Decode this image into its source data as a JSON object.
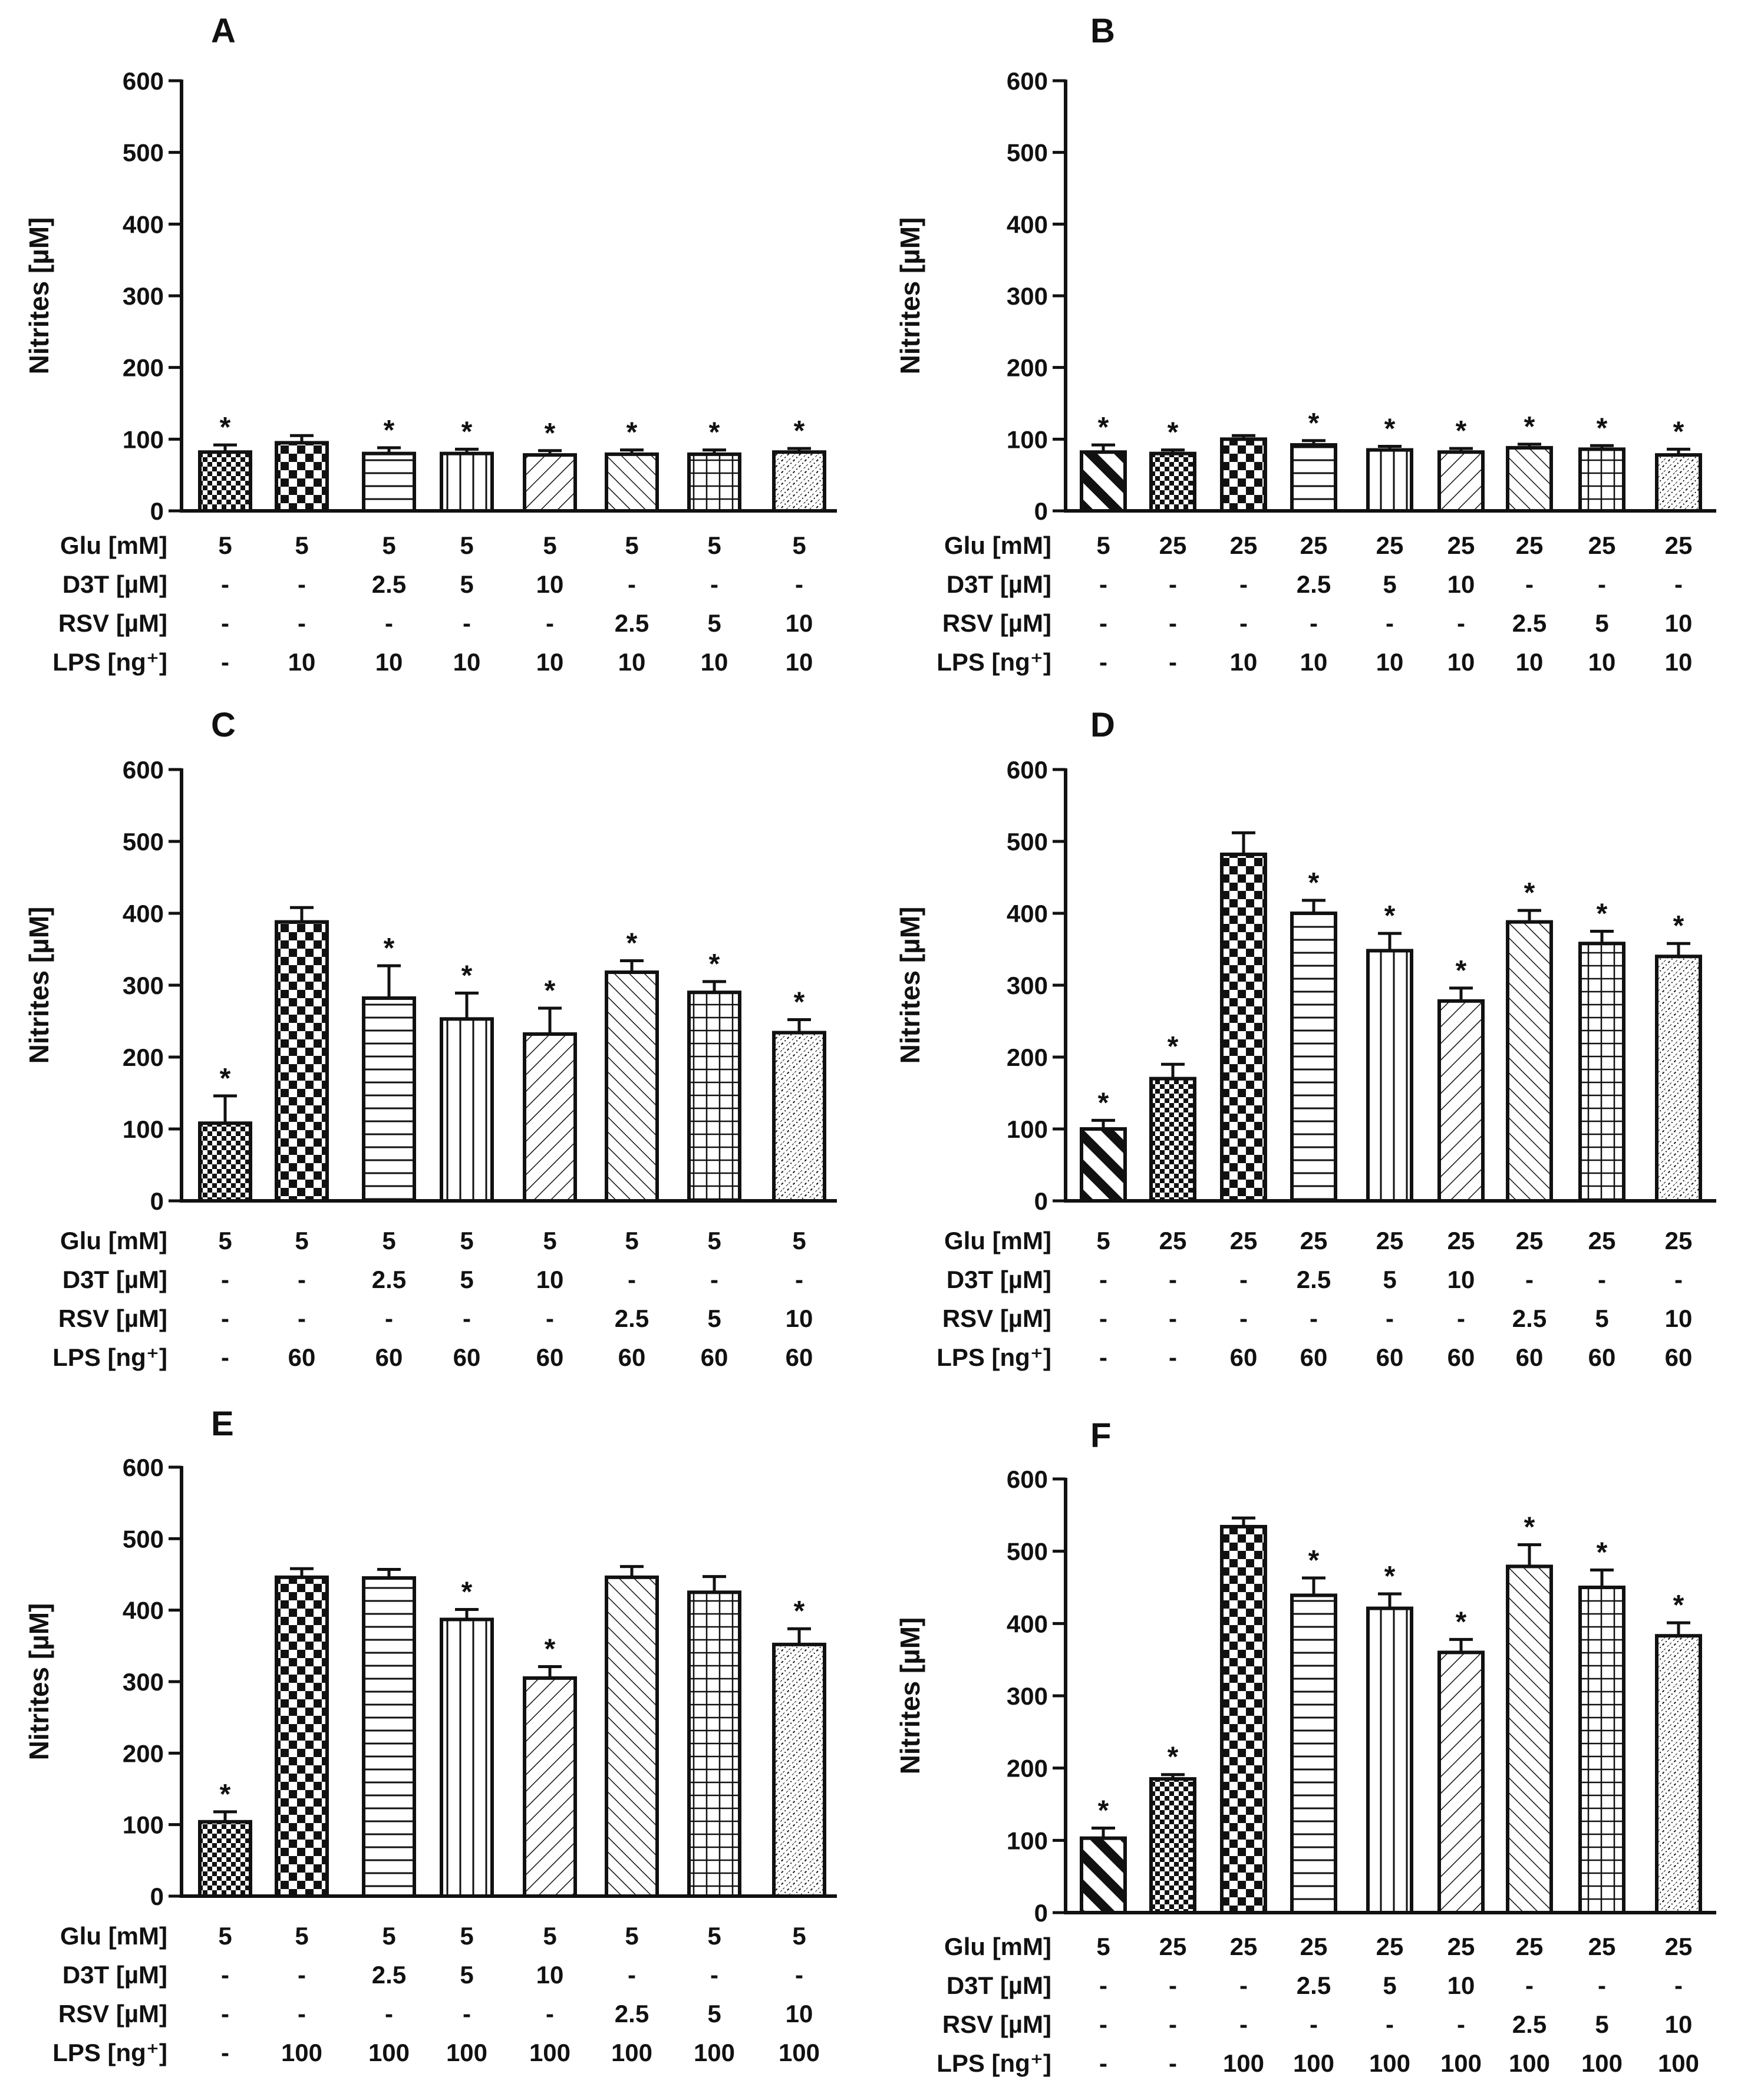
{
  "figure": {
    "y_axis_title": "Nitrites [µM]",
    "row_labels": [
      "Glu [mM]",
      "D3T [µM]",
      "RSV [µM]",
      "LPS [ng⁺]"
    ],
    "patterns": [
      "dense-check",
      "check",
      "hlines",
      "vlines",
      "diag-right",
      "diag-left",
      "grid",
      "dots"
    ],
    "colors": {
      "ink": "#111111",
      "fill": "#ffffff"
    }
  },
  "chart_data": [
    {
      "panel": "A",
      "type": "bar",
      "ylim": [
        0,
        600
      ],
      "yticks": [
        0,
        100,
        200,
        300,
        400,
        500,
        600
      ],
      "ylabel": "Nitrites [µM]",
      "values": [
        82,
        95,
        80,
        80,
        78,
        79,
        79,
        82
      ],
      "errors": [
        10,
        10,
        8,
        6,
        6,
        6,
        6,
        5
      ],
      "stars": [
        true,
        false,
        true,
        true,
        true,
        true,
        true,
        true
      ],
      "patterns": [
        "dense-check",
        "check",
        "hlines",
        "vlines",
        "diag-right",
        "diag-left",
        "grid",
        "dots"
      ],
      "table": {
        "glu": [
          "5",
          "5",
          "5",
          "5",
          "5",
          "5",
          "5",
          "5"
        ],
        "d3t": [
          "-",
          "-",
          "2.5",
          "5",
          "10",
          "-",
          "-",
          "-"
        ],
        "rsv": [
          "-",
          "-",
          "-",
          "-",
          "-",
          "2.5",
          "5",
          "10"
        ],
        "lps": [
          "-",
          "10",
          "10",
          "10",
          "10",
          "10",
          "10",
          "10"
        ]
      }
    },
    {
      "panel": "B",
      "type": "bar",
      "ylim": [
        0,
        600
      ],
      "yticks": [
        0,
        100,
        200,
        300,
        400,
        500,
        600
      ],
      "ylabel": "Nitrites [µM]",
      "values": [
        82,
        80,
        100,
        92,
        85,
        82,
        88,
        86,
        78
      ],
      "errors": [
        10,
        5,
        5,
        6,
        5,
        5,
        5,
        5,
        8
      ],
      "stars": [
        true,
        true,
        false,
        true,
        true,
        true,
        true,
        true,
        true
      ],
      "patterns": [
        "thick-diag",
        "dense-check",
        "check",
        "hlines",
        "vlines",
        "diag-right",
        "diag-left",
        "grid",
        "dots"
      ],
      "table": {
        "glu": [
          "5",
          "25",
          "25",
          "25",
          "25",
          "25",
          "25",
          "25",
          "25"
        ],
        "d3t": [
          "-",
          "-",
          "-",
          "2.5",
          "5",
          "10",
          "-",
          "-",
          "-"
        ],
        "rsv": [
          "-",
          "-",
          "-",
          "-",
          "-",
          "-",
          "2.5",
          "5",
          "10"
        ],
        "lps": [
          "-",
          "-",
          "10",
          "10",
          "10",
          "10",
          "10",
          "10",
          "10"
        ]
      }
    },
    {
      "panel": "C",
      "type": "bar",
      "ylim": [
        0,
        600
      ],
      "yticks": [
        0,
        100,
        200,
        300,
        400,
        500,
        600
      ],
      "ylabel": "Nitrites [µM]",
      "values": [
        108,
        388,
        282,
        253,
        232,
        318,
        290,
        234
      ],
      "errors": [
        38,
        20,
        45,
        36,
        36,
        16,
        15,
        18
      ],
      "stars": [
        true,
        false,
        true,
        true,
        true,
        true,
        true,
        true
      ],
      "patterns": [
        "dense-check",
        "check",
        "hlines",
        "vlines",
        "diag-right",
        "diag-left",
        "grid",
        "dots"
      ],
      "table": {
        "glu": [
          "5",
          "5",
          "5",
          "5",
          "5",
          "5",
          "5",
          "5"
        ],
        "d3t": [
          "-",
          "-",
          "2.5",
          "5",
          "10",
          "-",
          "-",
          "-"
        ],
        "rsv": [
          "-",
          "-",
          "-",
          "-",
          "-",
          "2.5",
          "5",
          "10"
        ],
        "lps": [
          "-",
          "60",
          "60",
          "60",
          "60",
          "60",
          "60",
          "60"
        ]
      }
    },
    {
      "panel": "D",
      "type": "bar",
      "ylim": [
        0,
        600
      ],
      "yticks": [
        0,
        100,
        200,
        300,
        400,
        500,
        600
      ],
      "ylabel": "Nitrites [µM]",
      "values": [
        100,
        170,
        482,
        400,
        348,
        278,
        388,
        358,
        340
      ],
      "errors": [
        12,
        20,
        30,
        18,
        24,
        18,
        16,
        17,
        18
      ],
      "stars": [
        true,
        true,
        false,
        true,
        true,
        true,
        true,
        true,
        true
      ],
      "patterns": [
        "thick-diag",
        "dense-check",
        "check",
        "hlines",
        "vlines",
        "diag-right",
        "diag-left",
        "grid",
        "dots"
      ],
      "table": {
        "glu": [
          "5",
          "25",
          "25",
          "25",
          "25",
          "25",
          "25",
          "25",
          "25"
        ],
        "d3t": [
          "-",
          "-",
          "-",
          "2.5",
          "5",
          "10",
          "-",
          "-",
          "-"
        ],
        "rsv": [
          "-",
          "-",
          "-",
          "-",
          "-",
          "-",
          "2.5",
          "5",
          "10"
        ],
        "lps": [
          "-",
          "-",
          "60",
          "60",
          "60",
          "60",
          "60",
          "60",
          "60"
        ]
      }
    },
    {
      "panel": "E",
      "type": "bar",
      "ylim": [
        0,
        600
      ],
      "yticks": [
        0,
        100,
        200,
        300,
        400,
        500,
        600
      ],
      "ylabel": "Nitrites [µM]",
      "values": [
        104,
        446,
        445,
        387,
        305,
        446,
        425,
        352
      ],
      "errors": [
        14,
        12,
        12,
        14,
        16,
        15,
        22,
        22
      ],
      "stars": [
        true,
        false,
        false,
        true,
        true,
        false,
        false,
        true
      ],
      "patterns": [
        "dense-check",
        "check",
        "hlines",
        "vlines",
        "diag-right",
        "diag-left",
        "grid",
        "dots"
      ],
      "table": {
        "glu": [
          "5",
          "5",
          "5",
          "5",
          "5",
          "5",
          "5",
          "5"
        ],
        "d3t": [
          "-",
          "-",
          "2.5",
          "5",
          "10",
          "-",
          "-",
          "-"
        ],
        "rsv": [
          "-",
          "-",
          "-",
          "-",
          "-",
          "2.5",
          "5",
          "10"
        ],
        "lps": [
          "-",
          "100",
          "100",
          "100",
          "100",
          "100",
          "100",
          "100"
        ]
      }
    },
    {
      "panel": "F",
      "type": "bar",
      "ylim": [
        0,
        600
      ],
      "yticks": [
        0,
        100,
        200,
        300,
        400,
        500,
        600
      ],
      "ylabel": "Nitrites [µM]",
      "values": [
        103,
        185,
        534,
        439,
        421,
        360,
        479,
        450,
        383
      ],
      "errors": [
        14,
        6,
        12,
        24,
        20,
        18,
        30,
        24,
        18
      ],
      "stars": [
        true,
        true,
        false,
        true,
        true,
        true,
        true,
        true,
        true
      ],
      "patterns": [
        "thick-diag",
        "dense-check",
        "check",
        "hlines",
        "vlines",
        "diag-right",
        "diag-left",
        "grid",
        "dots"
      ],
      "table": {
        "glu": [
          "5",
          "25",
          "25",
          "25",
          "25",
          "25",
          "25",
          "25",
          "25"
        ],
        "d3t": [
          "-",
          "-",
          "-",
          "2.5",
          "5",
          "10",
          "-",
          "-",
          "-"
        ],
        "rsv": [
          "-",
          "-",
          "-",
          "-",
          "-",
          "-",
          "2.5",
          "5",
          "10"
        ],
        "lps": [
          "-",
          "-",
          "100",
          "100",
          "100",
          "100",
          "100",
          "100",
          "100"
        ]
      }
    }
  ]
}
